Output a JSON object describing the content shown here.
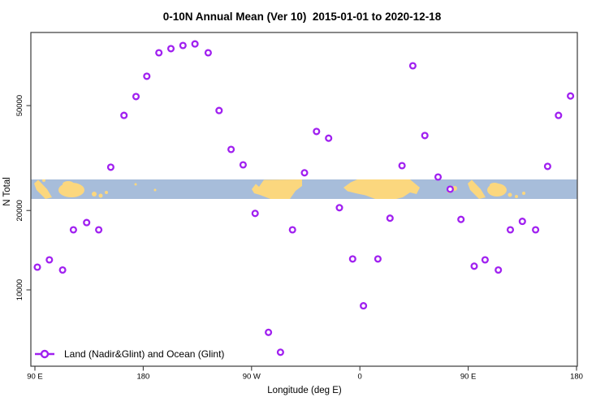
{
  "colors": {
    "marker": "#A020F0",
    "marker_fill": "#FFFFFF",
    "ocean": "#A7BDDA",
    "land": "#FBD77E",
    "axis": "#3A3A3A",
    "text": "#000000",
    "background": "#FFFFFF"
  },
  "legend": {
    "label": "Land (Nadir&Glint) and Ocean (Glint)"
  },
  "chart_data": {
    "type": "scatter",
    "title": "0-10N Annual Mean (Ver 10)  2015-01-01 to 2020-12-18",
    "xlabel": "Longitude (deg E)",
    "ylabel": "N Total",
    "x_axis": {
      "note": "longitude axis spans 450 degrees, wrapping 90E->180->90W->0->90E->180",
      "range_deg": [
        90,
        540
      ],
      "ticks": [
        {
          "deg": 90,
          "label": "90 E"
        },
        {
          "deg": 180,
          "label": "180"
        },
        {
          "deg": 270,
          "label": "90 W"
        },
        {
          "deg": 360,
          "label": "0"
        },
        {
          "deg": 450,
          "label": "90 E"
        },
        {
          "deg": 540,
          "label": "180"
        }
      ]
    },
    "y_axis": {
      "scale": "log",
      "range": [
        5000,
        95000
      ],
      "ticks": [
        {
          "value": 10000,
          "label": "10000"
        },
        {
          "value": 20000,
          "label": "20000"
        },
        {
          "value": 50000,
          "label": "50000"
        }
      ]
    },
    "grid": "off",
    "legend_position": "bottom-left",
    "map_band": {
      "description": "0-10N world map strip drawn across plot between roughly N=22000 and N=26000",
      "ocean_color": "#A7BDDA",
      "land_color": "#FBD77E"
    },
    "point_format": [
      "axis_deg",
      "n_total"
    ],
    "points": [
      [
        92,
        12200
      ],
      [
        102,
        13000
      ],
      [
        113,
        11900
      ],
      [
        122,
        16900
      ],
      [
        133,
        18000
      ],
      [
        143,
        16900
      ],
      [
        153,
        29200
      ],
      [
        164,
        45900
      ],
      [
        174,
        54100
      ],
      [
        183,
        64600
      ],
      [
        193,
        79300
      ],
      [
        203,
        82200
      ],
      [
        213,
        84500
      ],
      [
        223,
        85700
      ],
      [
        234,
        79300
      ],
      [
        243,
        47900
      ],
      [
        253,
        34100
      ],
      [
        263,
        29800
      ],
      [
        273,
        19500
      ],
      [
        284,
        6900
      ],
      [
        294,
        5800
      ],
      [
        304,
        16900
      ],
      [
        314,
        27800
      ],
      [
        324,
        39900
      ],
      [
        334,
        37600
      ],
      [
        343,
        20500
      ],
      [
        354,
        13100
      ],
      [
        363,
        8700
      ],
      [
        375,
        13100
      ],
      [
        385,
        18700
      ],
      [
        395,
        29600
      ],
      [
        404,
        70800
      ],
      [
        414,
        38500
      ],
      [
        425,
        26800
      ],
      [
        435,
        24100
      ],
      [
        444,
        18500
      ],
      [
        455,
        12300
      ],
      [
        464,
        13000
      ],
      [
        475,
        11900
      ],
      [
        485,
        16900
      ],
      [
        495,
        18200
      ],
      [
        506,
        16900
      ],
      [
        516,
        29400
      ],
      [
        525,
        45900
      ],
      [
        535,
        54400
      ]
    ]
  }
}
